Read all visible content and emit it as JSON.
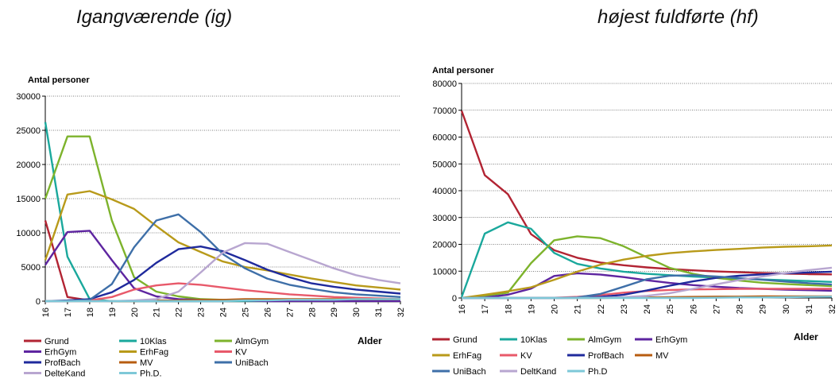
{
  "colors": {
    "Grund": "#b22433",
    "10Klas": "#1aa89c",
    "AlmGym": "#7db32c",
    "ErhGym": "#5e25a0",
    "ErhFag": "#b89a1a",
    "KV": "#e8596a",
    "ProfBach": "#1f2a9c",
    "MV": "#b75c10",
    "UniBach": "#3e6fa8",
    "DelteKand": "#b8a6d0",
    "Ph.D": "#7ec8d8"
  },
  "chart_data": [
    {
      "type": "line",
      "title": "Igangværende (ig)",
      "ylabel": "Antal personer",
      "xlabel": "",
      "ylim": [
        0,
        30000
      ],
      "yticks": [
        "0",
        "5000",
        "10000",
        "15000",
        "20000",
        "25000",
        "30000"
      ],
      "x": [
        "16",
        "17",
        "18",
        "19",
        "20",
        "21",
        "22",
        "23",
        "24",
        "25",
        "26",
        "27",
        "28",
        "29",
        "30",
        "31",
        "32"
      ],
      "grid": true,
      "legend": "bottom",
      "series": [
        {
          "name": "Grund",
          "values": [
            11800,
            600,
            100,
            0,
            0,
            0,
            0,
            0,
            0,
            0,
            0,
            0,
            0,
            0,
            0,
            0,
            0
          ]
        },
        {
          "name": "10Klas",
          "values": [
            26200,
            6500,
            300,
            0,
            0,
            0,
            0,
            0,
            0,
            0,
            0,
            0,
            0,
            0,
            0,
            0,
            0
          ]
        },
        {
          "name": "AlmGym",
          "values": [
            15000,
            24100,
            24100,
            11800,
            3500,
            1400,
            700,
            300,
            200,
            100,
            100,
            0,
            0,
            0,
            0,
            0,
            0
          ]
        },
        {
          "name": "ErhGym",
          "values": [
            5300,
            10100,
            10300,
            6000,
            1900,
            700,
            300,
            200,
            100,
            100,
            0,
            0,
            0,
            0,
            0,
            0,
            0
          ]
        },
        {
          "name": "ErhFag",
          "values": [
            6000,
            15600,
            16100,
            14900,
            13500,
            11000,
            8600,
            7200,
            5800,
            5000,
            4500,
            3900,
            3300,
            2800,
            2300,
            2000,
            1700
          ]
        },
        {
          "name": "KV",
          "values": [
            0,
            0,
            100,
            600,
            1700,
            2300,
            2600,
            2400,
            2000,
            1600,
            1300,
            1000,
            800,
            600,
            500,
            400,
            300
          ]
        },
        {
          "name": "ProfBach",
          "values": [
            0,
            100,
            300,
            1300,
            3100,
            5600,
            7600,
            8000,
            7300,
            6000,
            4600,
            3500,
            2600,
            2100,
            1700,
            1400,
            1100
          ]
        },
        {
          "name": "MV",
          "values": [
            0,
            0,
            0,
            0,
            0,
            100,
            100,
            200,
            200,
            300,
            300,
            300,
            300,
            300,
            300,
            300,
            300
          ]
        },
        {
          "name": "UniBach",
          "values": [
            0,
            0,
            200,
            2500,
            7900,
            11800,
            12700,
            10100,
            6900,
            4800,
            3300,
            2400,
            1800,
            1300,
            1000,
            800,
            600
          ]
        },
        {
          "name": "DelteKand",
          "values": [
            0,
            0,
            0,
            0,
            100,
            300,
            1400,
            4200,
            7100,
            8500,
            8400,
            7200,
            6000,
            4800,
            3800,
            3100,
            2600
          ]
        },
        {
          "name": "Ph.D.",
          "values": [
            0,
            0,
            0,
            0,
            0,
            0,
            0,
            0,
            0,
            100,
            100,
            200,
            200,
            200,
            300,
            300,
            300
          ]
        }
      ]
    },
    {
      "type": "line",
      "title": "højest fuldførte (hf)",
      "ylabel": "Antal personer",
      "xlabel": "Alder",
      "ylim": [
        0,
        80000
      ],
      "yticks": [
        "0",
        "10000",
        "20000",
        "30000",
        "40000",
        "50000",
        "60000",
        "70000",
        "80000"
      ],
      "x": [
        "16",
        "17",
        "18",
        "19",
        "20",
        "21",
        "22",
        "23",
        "24",
        "25",
        "26",
        "27",
        "28",
        "29",
        "30",
        "31",
        "32"
      ],
      "grid": true,
      "legend": "bottom",
      "series": [
        {
          "name": "Grund",
          "values": [
            69800,
            45800,
            38700,
            23800,
            17800,
            15000,
            13200,
            12200,
            11400,
            10800,
            10300,
            9900,
            9600,
            9300,
            9100,
            8900,
            8800
          ]
        },
        {
          "name": "10Klas",
          "values": [
            300,
            24000,
            28200,
            25800,
            16800,
            12700,
            11000,
            9800,
            9000,
            8500,
            8000,
            7600,
            7200,
            6900,
            6600,
            6300,
            6000
          ]
        },
        {
          "name": "AlmGym",
          "values": [
            0,
            800,
            2000,
            13000,
            21500,
            23000,
            22300,
            19300,
            15200,
            11200,
            9000,
            7500,
            6500,
            5700,
            5200,
            4800,
            4400
          ]
        },
        {
          "name": "ErhGym",
          "values": [
            0,
            200,
            1200,
            3500,
            8200,
            9200,
            8700,
            7800,
            6600,
            5600,
            4800,
            4200,
            3700,
            3400,
            3100,
            2900,
            2700
          ]
        },
        {
          "name": "ErhFag",
          "values": [
            0,
            1200,
            2500,
            4000,
            6800,
            9800,
            12400,
            14300,
            15700,
            16700,
            17400,
            17900,
            18300,
            18800,
            19100,
            19300,
            19600
          ]
        },
        {
          "name": "KV",
          "values": [
            0,
            0,
            0,
            0,
            100,
            400,
            1100,
            2000,
            2600,
            3000,
            3200,
            3300,
            3400,
            3400,
            3400,
            3400,
            3400
          ]
        },
        {
          "name": "ProfBach",
          "values": [
            0,
            0,
            0,
            0,
            0,
            100,
            400,
            1200,
            2800,
            4600,
            6200,
            7500,
            8300,
            8800,
            9200,
            9500,
            9800
          ]
        },
        {
          "name": "MV",
          "values": [
            0,
            0,
            0,
            0,
            0,
            0,
            0,
            100,
            200,
            300,
            400,
            500,
            500,
            600,
            600,
            600,
            600
          ]
        },
        {
          "name": "UniBach",
          "values": [
            0,
            0,
            0,
            0,
            0,
            200,
            1500,
            4200,
            7000,
            8300,
            8500,
            8000,
            7400,
            6800,
            6100,
            5500,
            5000
          ]
        },
        {
          "name": "DeltKand",
          "values": [
            0,
            0,
            0,
            0,
            0,
            0,
            100,
            300,
            800,
            1800,
            3400,
            5100,
            6700,
            8000,
            9300,
            10400,
            11300
          ]
        },
        {
          "name": "Ph.D",
          "values": [
            0,
            0,
            0,
            0,
            0,
            0,
            0,
            0,
            0,
            0,
            0,
            100,
            200,
            200,
            300,
            400,
            500
          ]
        }
      ]
    }
  ]
}
